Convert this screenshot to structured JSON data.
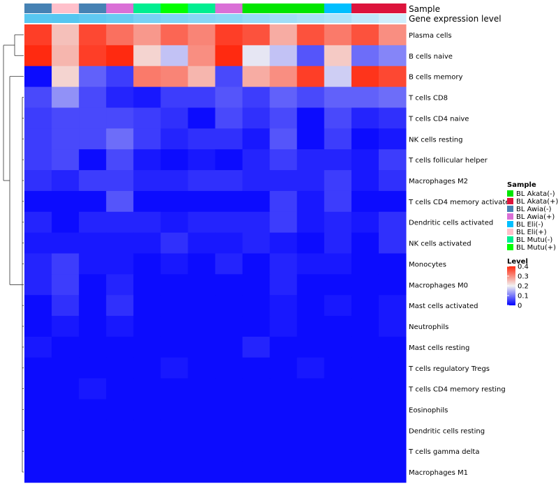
{
  "chart_data": {
    "type": "heatmap",
    "title": "",
    "annotation_labels": {
      "sample": "Sample",
      "expression": "Gene expression level"
    },
    "columns": [
      {
        "sample": "BL Awia(-)",
        "expression": 0.95
      },
      {
        "sample": "BL Eli(+)",
        "expression": 0.97
      },
      {
        "sample": "BL Awia(-)",
        "expression": 0.9
      },
      {
        "sample": "BL Awia(+)",
        "expression": 0.85
      },
      {
        "sample": "BL Mutu(-)",
        "expression": 0.75
      },
      {
        "sample": "BL Mutu(+)",
        "expression": 0.7
      },
      {
        "sample": "BL Mutu(-)",
        "expression": 0.65
      },
      {
        "sample": "BL Awia(+)",
        "expression": 0.62
      },
      {
        "sample": "BL Akata(-)",
        "expression": 0.55
      },
      {
        "sample": "BL Akata(-)",
        "expression": 0.5
      },
      {
        "sample": "BL Akata(-)",
        "expression": 0.45
      },
      {
        "sample": "BL Eli(-)",
        "expression": 0.4
      },
      {
        "sample": "BL Akata(+)",
        "expression": 0.3
      },
      {
        "sample": "BL Akata(+)",
        "expression": 0.2
      }
    ],
    "rows": [
      "Plasma cells",
      "B cells naive",
      "B cells memory",
      "T cells CD8",
      "T cells CD4 naive",
      "NK cells resting",
      "T cells follicular helper",
      "Macrophages M2",
      "T cells CD4 memory activated",
      "Dendritic cells activated",
      "NK cells activated",
      "Monocytes",
      "Macrophages M0",
      "Mast cells activated",
      "Neutrophils",
      "Mast cells resting",
      "T cells regulatory  Tregs",
      "T cells CD4 memory resting",
      "Eosinophils",
      "Dendritic cells resting",
      "T cells gamma delta",
      "Macrophages M1"
    ],
    "values": [
      [
        0.38,
        0.25,
        0.37,
        0.33,
        0.29,
        0.34,
        0.31,
        0.38,
        0.36,
        0.27,
        0.36,
        0.32,
        0.36,
        0.3
      ],
      [
        0.4,
        0.26,
        0.38,
        0.4,
        0.23,
        0.16,
        0.3,
        0.4,
        0.19,
        0.16,
        0.07,
        0.24,
        0.09,
        0.11
      ],
      [
        0.01,
        0.23,
        0.08,
        0.05,
        0.32,
        0.31,
        0.26,
        0.06,
        0.27,
        0.3,
        0.38,
        0.17,
        0.39,
        0.37
      ],
      [
        0.06,
        0.12,
        0.06,
        0.03,
        0.02,
        0.05,
        0.05,
        0.07,
        0.05,
        0.08,
        0.06,
        0.08,
        0.08,
        0.09
      ],
      [
        0.05,
        0.06,
        0.06,
        0.06,
        0.05,
        0.04,
        0.01,
        0.06,
        0.04,
        0.06,
        0.01,
        0.06,
        0.03,
        0.04
      ],
      [
        0.05,
        0.06,
        0.06,
        0.09,
        0.05,
        0.03,
        0.04,
        0.04,
        0.02,
        0.07,
        0.01,
        0.05,
        0.01,
        0.02
      ],
      [
        0.05,
        0.06,
        0.01,
        0.06,
        0.02,
        0.01,
        0.02,
        0.01,
        0.03,
        0.05,
        0.03,
        0.03,
        0.02,
        0.05
      ],
      [
        0.04,
        0.03,
        0.05,
        0.05,
        0.03,
        0.03,
        0.04,
        0.04,
        0.03,
        0.03,
        0.03,
        0.05,
        0.02,
        0.04
      ],
      [
        0.01,
        0.01,
        0.01,
        0.07,
        0.01,
        0.01,
        0.01,
        0.01,
        0.01,
        0.05,
        0.02,
        0.05,
        0.01,
        0.01
      ],
      [
        0.03,
        0.01,
        0.03,
        0.03,
        0.03,
        0.02,
        0.03,
        0.03,
        0.03,
        0.05,
        0.02,
        0.03,
        0.02,
        0.04
      ],
      [
        0.02,
        0.02,
        0.02,
        0.02,
        0.02,
        0.04,
        0.02,
        0.02,
        0.03,
        0.02,
        0.01,
        0.03,
        0.01,
        0.04
      ],
      [
        0.03,
        0.05,
        0.02,
        0.02,
        0.01,
        0.02,
        0.01,
        0.03,
        0.01,
        0.03,
        0.02,
        0.02,
        0.01,
        0.01
      ],
      [
        0.03,
        0.05,
        0.01,
        0.03,
        0.01,
        0.01,
        0.01,
        0.01,
        0.01,
        0.03,
        0.01,
        0.01,
        0.01,
        0.01
      ],
      [
        0.01,
        0.04,
        0.01,
        0.04,
        0.01,
        0.01,
        0.01,
        0.01,
        0.01,
        0.02,
        0.01,
        0.02,
        0.01,
        0.02
      ],
      [
        0.01,
        0.02,
        0.01,
        0.02,
        0.01,
        0.01,
        0.01,
        0.01,
        0.01,
        0.02,
        0.01,
        0.01,
        0.01,
        0.02
      ],
      [
        0.02,
        0.01,
        0.01,
        0.01,
        0.01,
        0.01,
        0.01,
        0.01,
        0.03,
        0.01,
        0.01,
        0.01,
        0.01,
        0.01
      ],
      [
        0.01,
        0.01,
        0.01,
        0.01,
        0.01,
        0.02,
        0.01,
        0.01,
        0.01,
        0.01,
        0.02,
        0.01,
        0.01,
        0.01
      ],
      [
        0.01,
        0.01,
        0.02,
        0.01,
        0.01,
        0.01,
        0.01,
        0.01,
        0.01,
        0.01,
        0.01,
        0.01,
        0.01,
        0.01
      ],
      [
        0.01,
        0.01,
        0.01,
        0.01,
        0.01,
        0.01,
        0.01,
        0.01,
        0.01,
        0.01,
        0.01,
        0.01,
        0.01,
        0.01
      ],
      [
        0.01,
        0.01,
        0.01,
        0.01,
        0.01,
        0.01,
        0.01,
        0.01,
        0.01,
        0.01,
        0.01,
        0.01,
        0.01,
        0.01
      ],
      [
        0.01,
        0.01,
        0.01,
        0.01,
        0.01,
        0.01,
        0.01,
        0.01,
        0.01,
        0.01,
        0.01,
        0.01,
        0.01,
        0.01
      ],
      [
        0.01,
        0.01,
        0.01,
        0.01,
        0.01,
        0.01,
        0.01,
        0.01,
        0.01,
        0.01,
        0.01,
        0.01,
        0.01,
        0.01
      ]
    ],
    "color_scale": {
      "min": 0,
      "mid": 0.2,
      "max": 0.4,
      "low_color": "#0000ff",
      "mid_color": "#f2f2f2",
      "high_color": "#ff2a10"
    },
    "sample_legend": {
      "title": "Sample",
      "entries": [
        {
          "label": "BL Akata(-)",
          "color": "#00e600"
        },
        {
          "label": "BL Akata(+)",
          "color": "#dc143c"
        },
        {
          "label": "BL Awia(-)",
          "color": "#4682b4"
        },
        {
          "label": "BL Awia(+)",
          "color": "#da70d6"
        },
        {
          "label": "BL Eli(-)",
          "color": "#00bfff"
        },
        {
          "label": "BL Eli(+)",
          "color": "#ffc0cb"
        },
        {
          "label": "BL Mutu(-)",
          "color": "#00ee90"
        },
        {
          "label": "BL Mutu(+)",
          "color": "#00ff00"
        }
      ]
    },
    "level_legend": {
      "title": "Level",
      "ticks": [
        0.4,
        0.3,
        0.2,
        0.1,
        0
      ],
      "tick_labels": [
        "0.4",
        "0.3",
        "0.2",
        "0.1",
        "0"
      ]
    }
  }
}
